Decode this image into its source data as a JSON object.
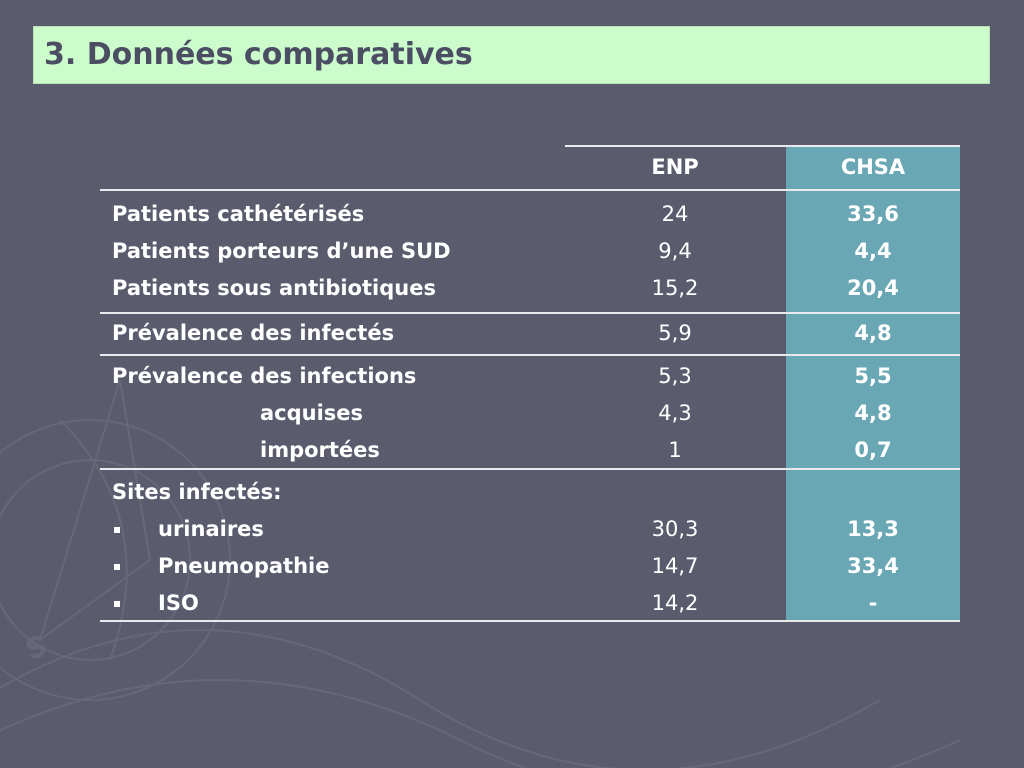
{
  "title": "3. Données comparatives",
  "columns": {
    "enp": "ENP",
    "chsa": "CHSA"
  },
  "groups": [
    {
      "rows": [
        {
          "label": "Patients cathétérisés",
          "enp": "24",
          "chsa": "33,6",
          "style": "normal"
        },
        {
          "label": "Patients porteurs d’une SUD",
          "enp": "9,4",
          "chsa": "4,4",
          "style": "normal"
        },
        {
          "label": "Patients sous antibiotiques",
          "enp": "15,2",
          "chsa": "20,4",
          "style": "normal"
        }
      ]
    },
    {
      "rows": [
        {
          "label": "Prévalence des infectés",
          "enp": "5,9",
          "chsa": "4,8",
          "style": "normal"
        }
      ]
    },
    {
      "rows": [
        {
          "label": "Prévalence des infections",
          "enp": "5,3",
          "chsa": "5,5",
          "style": "normal"
        },
        {
          "label": "acquises",
          "enp": "4,3",
          "chsa": "4,8",
          "style": "indent"
        },
        {
          "label": "importées",
          "enp": "1",
          "chsa": "0,7",
          "style": "indent"
        }
      ]
    },
    {
      "rows": [
        {
          "label": "Sites infectés:",
          "enp": "",
          "chsa": "",
          "style": "normal"
        },
        {
          "label": "urinaires",
          "enp": "30,3",
          "chsa": "13,3",
          "style": "bullet"
        },
        {
          "label": "Pneumopathie",
          "enp": "14,7",
          "chsa": "33,4",
          "style": "bullet"
        },
        {
          "label": "ISO",
          "enp": "14,2",
          "chsa": "-",
          "style": "bullet"
        }
      ]
    }
  ],
  "colors": {
    "background": "#5a5c6e",
    "title_bar": "#ccfccc",
    "chsa_column": "#6aa7b5",
    "title_text": "#4b4e63"
  }
}
